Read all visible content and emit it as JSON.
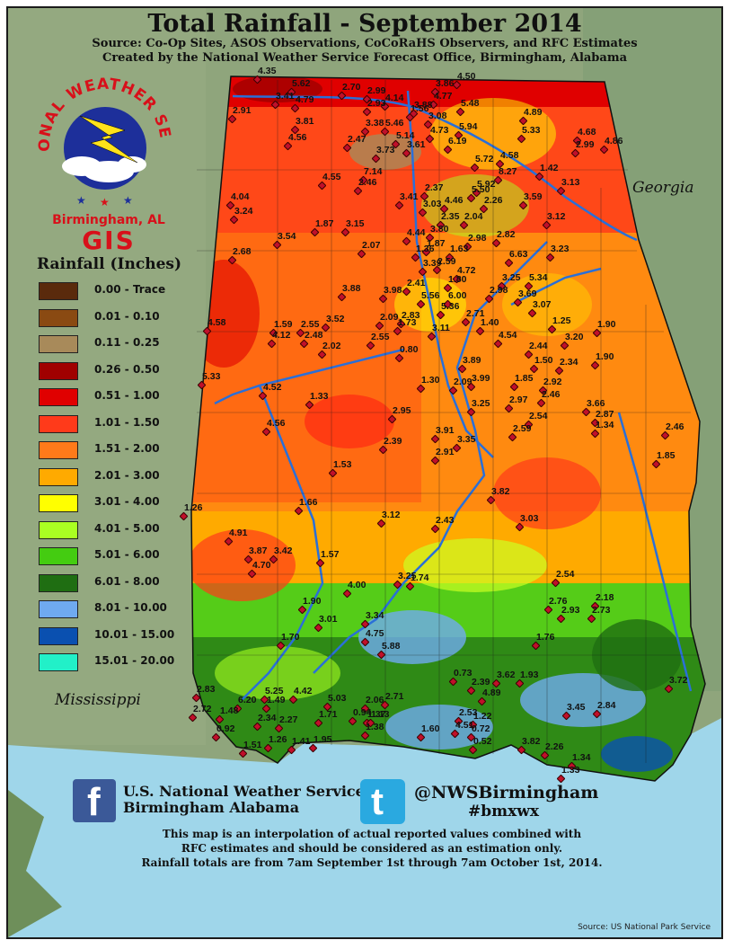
{
  "title": "Total Rainfall - September 2014",
  "source_line": "Source: Co-Op Sites, ASOS Observations, CoCoRaHS Observers, and RFC Estimates",
  "created_line": "Created by the National Weather Service Forecast Office, Birmingham, Alabama",
  "states": {
    "georgia": "Georgia",
    "mississippi": "Mississippi"
  },
  "logo": {
    "arc_text": "NATIONAL WEATHER SERVICE",
    "office": "Birmingham, AL",
    "gis": "GIS"
  },
  "legend": {
    "title": "Rainfall (Inches)",
    "items": [
      {
        "label": "0.00 - Trace",
        "color": "#5a2a0c"
      },
      {
        "label": "0.01 - 0.10",
        "color": "#8a4a12"
      },
      {
        "label": "0.11 - 0.25",
        "color": "#a88a5a"
      },
      {
        "label": "0.26 - 0.50",
        "color": "#a00000"
      },
      {
        "label": "0.51 - 1.00",
        "color": "#e00000"
      },
      {
        "label": "1.01 - 1.50",
        "color": "#ff3a1a"
      },
      {
        "label": "1.51 - 2.00",
        "color": "#ff7a1a"
      },
      {
        "label": "2.01 - 3.00",
        "color": "#ffaa00"
      },
      {
        "label": "3.01 - 4.00",
        "color": "#ffff00"
      },
      {
        "label": "4.01 - 5.00",
        "color": "#aaff22"
      },
      {
        "label": "5.01 - 6.00",
        "color": "#44cc11"
      },
      {
        "label": "6.01 - 8.00",
        "color": "#1f6e12"
      },
      {
        "label": "8.01 - 10.00",
        "color": "#6faaf0"
      },
      {
        "label": "10.01 - 15.00",
        "color": "#0a50b0"
      },
      {
        "label": "15.01 - 20.00",
        "color": "#22f0c8"
      }
    ]
  },
  "observations": [
    "4.35",
    "5.62",
    "3.41",
    "4.79",
    "2.70",
    "2.99",
    "4.14",
    "3.86",
    "4.50",
    "4.77",
    "5.48",
    "2.91",
    "3.81",
    "2.93",
    "1.56",
    "3.88",
    "3.08",
    "4.89",
    "4.56",
    "2.47",
    "3.38",
    "5.46",
    "5.14",
    "4.73",
    "5.94",
    "5.33",
    "4.68",
    "2.99",
    "4.86",
    "3.73",
    "3.61",
    "6.19",
    "5.72",
    "4.58",
    "8.27",
    "1.42",
    "7.14",
    "5.92",
    "4.55",
    "2.46",
    "3.41",
    "2.37",
    "5.50",
    "3.13",
    "4.04",
    "3.03",
    "4.46",
    "2.26",
    "3.59",
    "3.24",
    "2.35",
    "2.04",
    "3.12",
    "1.87",
    "3.15",
    "4.44",
    "3.80",
    "3.54",
    "2.98",
    "2.82",
    "2.68",
    "2.07",
    "1.87",
    "1.36",
    "1.63",
    "6.63",
    "3.23",
    "3.39",
    "2.59",
    "4.72",
    "3.25",
    "5.34",
    "3.88",
    "3.98",
    "2.41",
    "1.80",
    "2.98",
    "3.69",
    "5.56",
    "6.00",
    "3.07",
    "5.36",
    "4.58",
    "2.55",
    "2.09",
    "2.83",
    "2.71",
    "1.25",
    "1.59",
    "3.52",
    "1.73",
    "1.40",
    "1.90",
    "4.12",
    "2.48",
    "3.11",
    "4.54",
    "3.20",
    "2.02",
    "2.55",
    "0.80",
    "2.44",
    "1.50",
    "1.90",
    "5.33",
    "3.89",
    "2.34",
    "4.52",
    "1.30",
    "2.09",
    "3.99",
    "1.85",
    "2.92",
    "1.33",
    "2.46",
    "3.66",
    "2.97",
    "3.25",
    "2.87",
    "4.56",
    "2.54",
    "1.34",
    "2.46",
    "2.95",
    "3.91",
    "2.59",
    "2.39",
    "3.35",
    "1.85",
    "2.91",
    "1.53",
    "3.82",
    "1.26",
    "1.66",
    "3.12",
    "2.43",
    "3.03",
    "4.91",
    "3.87",
    "3.42",
    "1.57",
    "4.70",
    "3.25",
    "1.74",
    "2.54",
    "4.00",
    "2.18",
    "1.90",
    "2.76",
    "2.93",
    "2.73",
    "3.01",
    "3.34",
    "1.70",
    "4.75",
    "1.76",
    "5.88",
    "0.73",
    "2.39",
    "3.62",
    "1.93",
    "2.83",
    "4.42",
    "5.03",
    "2.06",
    "2.71",
    "4.89",
    "3.45",
    "3.72",
    "6.20",
    "5.25",
    "1.49",
    "0.94",
    "2.53",
    "1.22",
    "2.84",
    "2.72",
    "1.48",
    "1.71",
    "1.37",
    "1.13",
    "1.60",
    "4.51",
    "0.92",
    "2.34",
    "2.27",
    "1.38",
    "0.72",
    "1.26",
    "1.41",
    "1.95",
    "0.52",
    "3.82",
    "2.26",
    "1.34",
    "1.51",
    "1.33"
  ],
  "social": {
    "facebook_name": "U.S. National Weather Service",
    "facebook_sub": "Birmingham Alabama",
    "twitter_handle": "@NWSBirmingham",
    "twitter_tag": "#bmxwx"
  },
  "disclaimer": [
    "This map is an interpolation of actual reported values combined with",
    "RFC estimates and should be considered as an estimation only.",
    "Rainfall totals are from 7am September 1st through 7am October 1st, 2014."
  ],
  "credit": "Source: US National Park Service"
}
